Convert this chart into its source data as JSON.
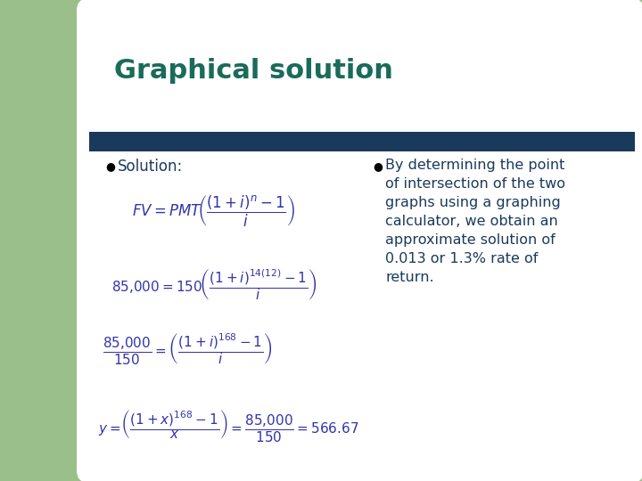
{
  "title": "Graphical solution",
  "title_color": "#1a6b5a",
  "title_fontsize": 22,
  "title_bold": true,
  "bg_color": "#ffffff",
  "green_color": "#9bbf8a",
  "dark_bar_color": "#1a3a5c",
  "bullet1_text": "Solution:",
  "bullet2_text": "By determining the point\nof intersection of the two\ngraphs using a graphing\ncalculator, we obtain an\napproximate solution of\n0.013 or 1.3% rate of\nreturn.",
  "formula1": "$FV = PMT\\left(\\dfrac{(1+i)^{n}-1}{i}\\right)$",
  "formula2": "$85{,}000 = 150\\left(\\dfrac{(1+i)^{14(12)}-1}{i}\\right)$",
  "formula3": "$\\dfrac{85{,}000}{150} = \\left(\\dfrac{(1+i)^{168}-1}{i}\\right)$",
  "formula4": "$y = \\left(\\dfrac{(1+x)^{168}-1}{x}\\right) = \\dfrac{85{,}000}{150} = 566.67$",
  "formula_color": "#3333aa",
  "text_color": "#1a3a5c",
  "text_fontsize": 11.5,
  "bullet_fontsize": 12,
  "formula_fontsize": 11
}
